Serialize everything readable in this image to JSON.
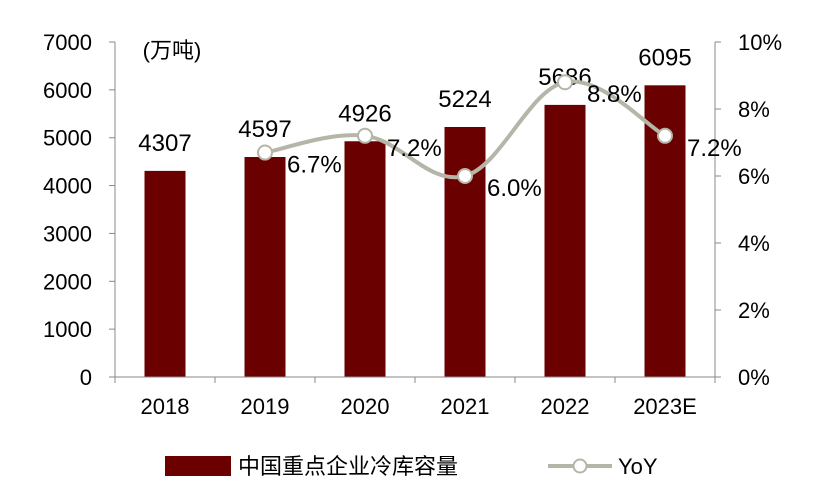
{
  "chart_data": {
    "type": "bar+line",
    "unit_label": "(万吨)",
    "categories": [
      "2018",
      "2019",
      "2020",
      "2021",
      "2022",
      "2023E"
    ],
    "bar_series": {
      "name": "中国重点企业冷库容量",
      "values": [
        4307,
        4597,
        4926,
        5224,
        5686,
        6095
      ],
      "color": "#6b0000"
    },
    "line_series": {
      "name": "YoY",
      "values": [
        null,
        6.7,
        7.2,
        6.0,
        8.8,
        7.2
      ],
      "labels": [
        "",
        "6.7%",
        "7.2%",
        "6.0%",
        "8.8%",
        "7.2%"
      ],
      "color": "#b5b5a8"
    },
    "y_left": {
      "min": 0,
      "max": 7000,
      "ticks": [
        "0",
        "1000",
        "2000",
        "3000",
        "4000",
        "5000",
        "6000",
        "7000"
      ]
    },
    "y_right": {
      "min": 0,
      "max": 10,
      "ticks": [
        "0%",
        "2%",
        "4%",
        "6%",
        "8%",
        "10%"
      ]
    },
    "grid": false,
    "legend_position": "bottom"
  }
}
